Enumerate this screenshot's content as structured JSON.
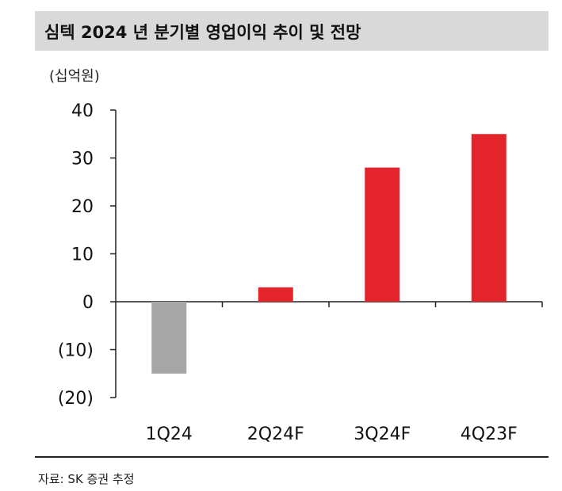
{
  "header": {
    "title": "심텍 2024 년 분기별 영업이익 추이 및 전망"
  },
  "unit_label": "(십억원)",
  "source_note": "자료: SK 증권 추정",
  "colors": {
    "negative_bar": "#a6a6a6",
    "positive_bar": "#e3242b",
    "title_bg": "#d9d9d9",
    "axis": "#222222"
  },
  "chart_data": {
    "type": "bar",
    "title": "심텍 2024 년 분기별 영업이익 추이 및 전망",
    "ylabel": "(십억원)",
    "xlabel": "",
    "categories": [
      "1Q24",
      "2Q24F",
      "3Q24F",
      "4Q23F"
    ],
    "values": [
      -15,
      3,
      28,
      35
    ],
    "ylim": [
      -20,
      40
    ],
    "yticks": [
      40,
      30,
      20,
      10,
      0,
      -10,
      -20
    ],
    "ytick_labels": [
      "40",
      "30",
      "20",
      "10",
      "0",
      "(10)",
      "(20)"
    ],
    "grid": false,
    "legend": "none"
  }
}
